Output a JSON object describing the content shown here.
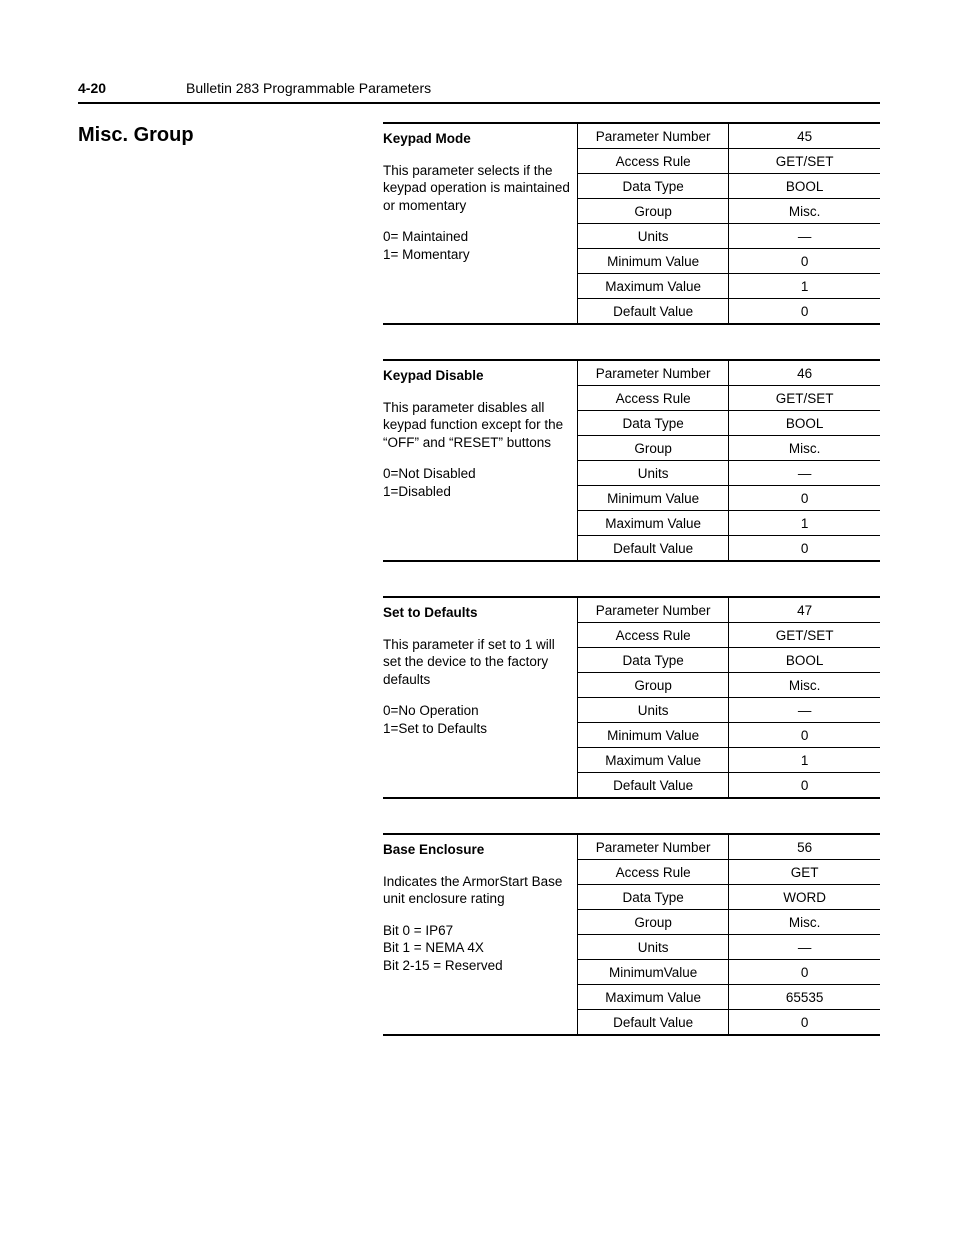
{
  "header": {
    "page_num": "4-20",
    "title": "Bulletin 283 Programmable Parameters"
  },
  "section_title": "Misc. Group",
  "blocks": [
    {
      "title": "Keypad Mode",
      "body": " This parameter selects if the keypad operation is maintained or momentary",
      "values": "0= Maintained\n1= Momentary",
      "attrs": [
        {
          "label": "Parameter Number",
          "value": "45"
        },
        {
          "label": "Access Rule",
          "value": "GET/SET"
        },
        {
          "label": "Data Type",
          "value": "BOOL"
        },
        {
          "label": "Group",
          "value": "Misc."
        },
        {
          "label": "Units",
          "value": "—"
        },
        {
          "label": "Minimum Value",
          "value": "0"
        },
        {
          "label": "Maximum Value",
          "value": "1"
        },
        {
          "label": "Default Value",
          "value": "0"
        }
      ]
    },
    {
      "title": "Keypad Disable",
      "body": "This parameter disables all keypad function except for the “OFF” and “RESET” buttons",
      "values": "0=Not Disabled\n1=Disabled",
      "attrs": [
        {
          "label": "Parameter Number",
          "value": "46"
        },
        {
          "label": "Access Rule",
          "value": "GET/SET"
        },
        {
          "label": "Data Type",
          "value": "BOOL"
        },
        {
          "label": "Group",
          "value": "Misc."
        },
        {
          "label": "Units",
          "value": "—"
        },
        {
          "label": "Minimum Value",
          "value": "0"
        },
        {
          "label": "Maximum Value",
          "value": "1"
        },
        {
          "label": "Default Value",
          "value": "0"
        }
      ]
    },
    {
      "title": "Set to Defaults",
      "body": "This parameter if set to 1 will set the device to the factory defaults",
      "values": "0=No Operation\n1=Set to Defaults",
      "attrs": [
        {
          "label": "Parameter Number",
          "value": "47"
        },
        {
          "label": "Access Rule",
          "value": "GET/SET"
        },
        {
          "label": "Data Type",
          "value": "BOOL"
        },
        {
          "label": "Group",
          "value": "Misc."
        },
        {
          "label": "Units",
          "value": "—"
        },
        {
          "label": "Minimum Value",
          "value": "0"
        },
        {
          "label": "Maximum Value",
          "value": "1"
        },
        {
          "label": "Default Value",
          "value": "0"
        }
      ]
    },
    {
      "title": "Base Enclosure",
      "body": "Indicates the ArmorStart Base unit enclosure rating",
      "values": "Bit 0 = IP67\nBit 1 = NEMA 4X\nBit 2-15 = Reserved",
      "attrs": [
        {
          "label": "Parameter Number",
          "value": "56"
        },
        {
          "label": "Access Rule",
          "value": "GET"
        },
        {
          "label": "Data Type",
          "value": "WORD"
        },
        {
          "label": "Group",
          "value": "Misc."
        },
        {
          "label": "Units",
          "value": "—"
        },
        {
          "label": "MinimumValue",
          "value": "0"
        },
        {
          "label": "Maximum Value",
          "value": "65535"
        },
        {
          "label": "Default Value",
          "value": "0"
        }
      ]
    }
  ]
}
